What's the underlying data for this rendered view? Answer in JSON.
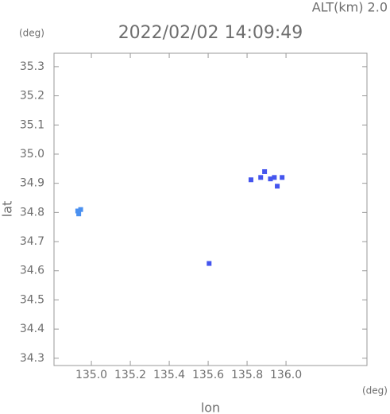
{
  "chart_data": {
    "type": "scatter",
    "annotation": "ALT(km)  2.0",
    "title": "2022/02/02 14:09:49",
    "y_unit": "(deg)",
    "x_unit": "(deg)",
    "xlabel": "lon",
    "ylabel": "lat",
    "xlim": [
      134.808,
      136.416
    ],
    "ylim": [
      34.275,
      35.346
    ],
    "xticks": [
      {
        "value": 135.0,
        "label": "135.0"
      },
      135.2,
      135.4,
      135.6,
      135.8,
      {
        "value": 136.0,
        "label": "136.0"
      }
    ],
    "yticks": [
      34.3,
      34.4,
      34.5,
      34.6,
      34.7,
      34.8,
      34.9,
      {
        "value": 35.0,
        "label": "35.0"
      },
      35.1,
      35.2,
      35.3
    ],
    "series": [
      {
        "color": "#4a90f0",
        "x": [
          134.93,
          134.945,
          134.935
        ],
        "values": [
          34.805,
          34.81,
          34.795
        ]
      },
      {
        "color": "#4455ee",
        "x": [
          135.605,
          135.82,
          135.87,
          135.89,
          135.92,
          135.94,
          135.955,
          135.98
        ],
        "values": [
          34.625,
          34.912,
          34.92,
          34.94,
          34.915,
          34.92,
          34.89,
          34.92
        ]
      }
    ]
  }
}
